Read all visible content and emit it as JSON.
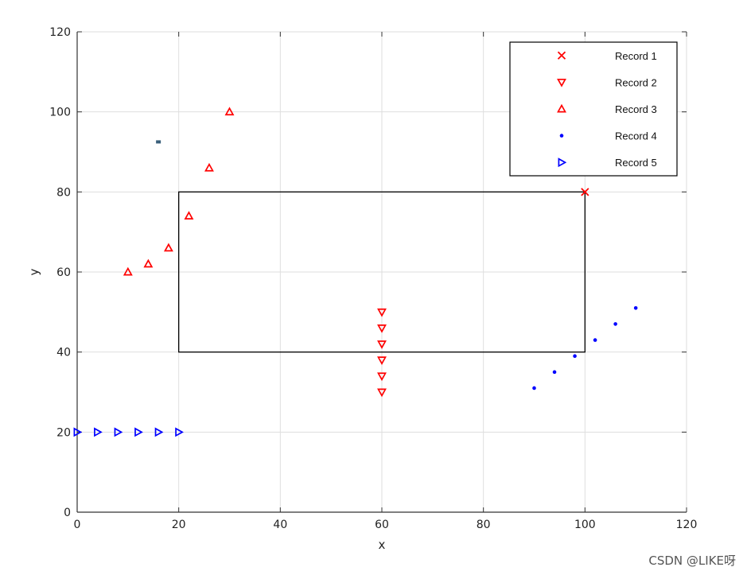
{
  "chart_data": {
    "type": "scatter",
    "xlabel": "x",
    "ylabel": "y",
    "xlim": [
      0,
      120
    ],
    "ylim": [
      0,
      120
    ],
    "xticks": [
      0,
      20,
      40,
      60,
      80,
      100,
      120
    ],
    "yticks": [
      0,
      20,
      40,
      60,
      80,
      100,
      120
    ],
    "grid": true,
    "legend_position": "top-right",
    "series": [
      {
        "name": "Record 1",
        "marker": "x",
        "color": "#ff0000",
        "points": [
          [
            100,
            80
          ]
        ]
      },
      {
        "name": "Record 2",
        "marker": "triangle-down",
        "color": "#ff0000",
        "points": [
          [
            60,
            50
          ],
          [
            60,
            46
          ],
          [
            60,
            42
          ],
          [
            60,
            38
          ],
          [
            60,
            34
          ],
          [
            60,
            30
          ]
        ]
      },
      {
        "name": "Record 3",
        "marker": "triangle-up",
        "color": "#ff0000",
        "points": [
          [
            10,
            60
          ],
          [
            14,
            62
          ],
          [
            18,
            66
          ],
          [
            22,
            74
          ],
          [
            26,
            86
          ],
          [
            30,
            100
          ]
        ]
      },
      {
        "name": "Record 4",
        "marker": "dot",
        "color": "#0000ff",
        "points": [
          [
            90,
            31
          ],
          [
            94,
            35
          ],
          [
            98,
            39
          ],
          [
            102,
            43
          ],
          [
            106,
            47
          ],
          [
            110,
            51
          ]
        ]
      },
      {
        "name": "Record 5",
        "marker": "triangle-right",
        "color": "#0000ff",
        "points": [
          [
            0,
            20
          ],
          [
            4,
            20
          ],
          [
            8,
            20
          ],
          [
            12,
            20
          ],
          [
            16,
            20
          ],
          [
            20,
            20
          ]
        ]
      }
    ],
    "rectangle": {
      "x1": 20,
      "y1": 40,
      "x2": 100,
      "y2": 80,
      "color": "#000000"
    },
    "stray_marker": {
      "x": 16,
      "y": 92.5,
      "color": "#3a5f7a"
    }
  },
  "watermark": "CSDN @LIKE呀"
}
